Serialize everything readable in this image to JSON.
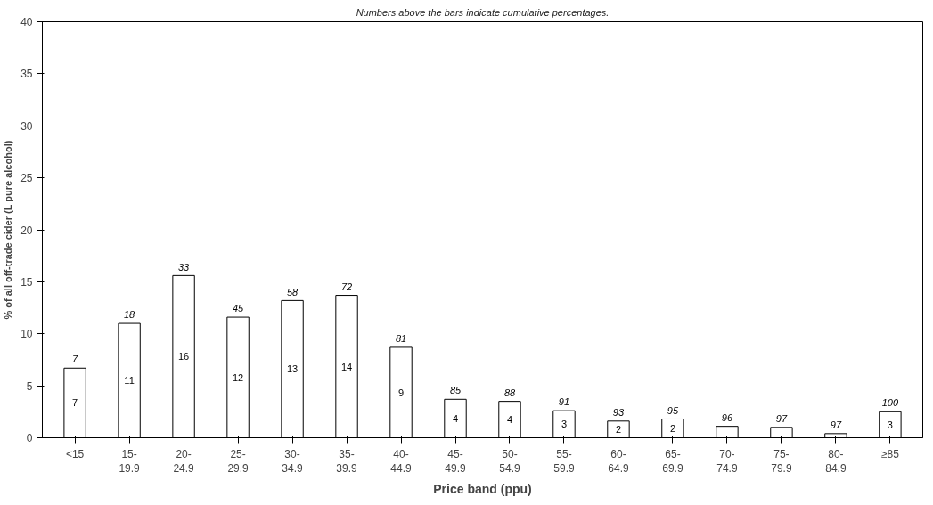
{
  "chart_data": {
    "type": "bar",
    "title": "Numbers above the bars indicate cumulative percentages.",
    "xlabel": "Price band (ppu)",
    "ylabel": "% of all off-trade cider (L pure alcohol)",
    "categories": [
      "<15",
      "15-\n19.9",
      "20-\n24.9",
      "25-\n29.9",
      "30-\n34.9",
      "35-\n39.9",
      "40-\n44.9",
      "45-\n49.9",
      "50-\n54.9",
      "55-\n59.9",
      "60-\n64.9",
      "65-\n69.9",
      "70-\n74.9",
      "75-\n79.9",
      "80-\n84.9",
      "≥85"
    ],
    "values": [
      6.7,
      11.0,
      15.6,
      11.6,
      13.2,
      13.7,
      8.7,
      3.7,
      3.5,
      2.6,
      1.6,
      1.8,
      1.1,
      1.0,
      0.4,
      2.5
    ],
    "value_labels": [
      "7",
      "11",
      "16",
      "12",
      "13",
      "14",
      "9",
      "4",
      "4",
      "3",
      "2",
      "2",
      null,
      null,
      null,
      "3"
    ],
    "color": "#ffffff",
    "annotations": [
      {
        "text": "7",
        "x": "<15",
        "y": 6.7
      },
      {
        "text": "18",
        "x": "15-\n19.9",
        "y": 11.0
      },
      {
        "text": "33",
        "x": "20-\n24.9",
        "y": 15.6
      },
      {
        "text": "45",
        "x": "25-\n29.9",
        "y": 11.6
      },
      {
        "text": "58",
        "x": "30-\n34.9",
        "y": 13.2
      },
      {
        "text": "72",
        "x": "35-\n39.9",
        "y": 13.7
      },
      {
        "text": "81",
        "x": "40-\n44.9",
        "y": 8.7
      },
      {
        "text": "85",
        "x": "45-\n49.9",
        "y": 3.7
      },
      {
        "text": "88",
        "x": "50-\n54.9",
        "y": 3.5
      },
      {
        "text": "91",
        "x": "55-\n59.9",
        "y": 2.6
      },
      {
        "text": "93",
        "x": "60-\n64.9",
        "y": 1.6
      },
      {
        "text": "95",
        "x": "65-\n69.9",
        "y": 1.8
      },
      {
        "text": "96",
        "x": "70-\n74.9",
        "y": 1.1
      },
      {
        "text": "97",
        "x": "75-\n79.9",
        "y": 1.0
      },
      {
        "text": "97",
        "x": "80-\n84.9",
        "y": 0.4
      },
      {
        "text": "100",
        "x": "≥85",
        "y": 2.5
      }
    ],
    "ylim": [
      0,
      40
    ],
    "yticks": [
      0,
      5,
      10,
      15,
      20,
      25,
      30,
      35,
      40
    ],
    "grid": false
  }
}
